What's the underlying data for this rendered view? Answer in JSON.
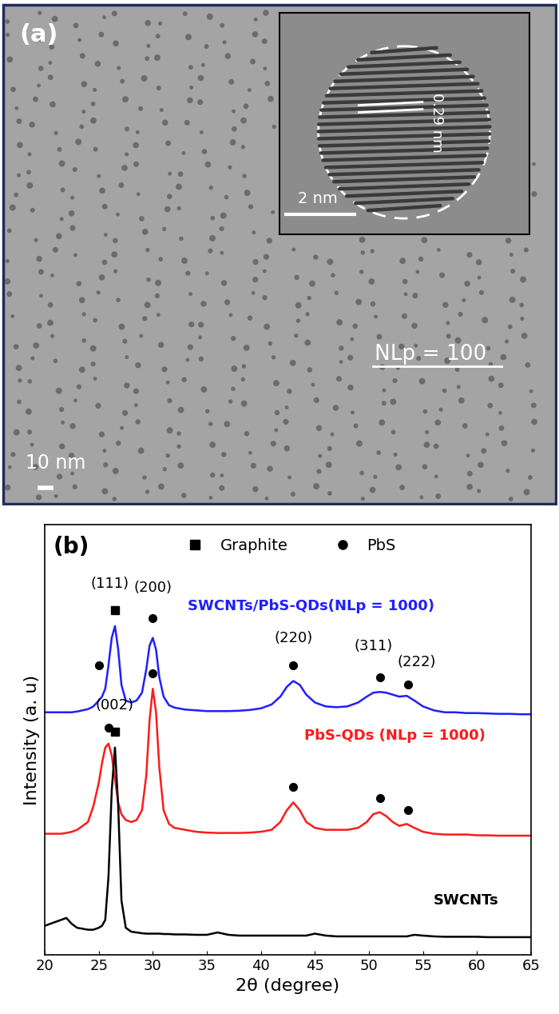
{
  "image": {
    "label": "(a)",
    "annotation": "NLp = 100",
    "scale_bar": "10 nm",
    "inset": {
      "lattice_spacing": "0.29 nm",
      "scale_bar": "2 nm"
    }
  },
  "chart_data": {
    "type": "line",
    "panel_label": "(b)",
    "xlabel": "2θ (degree)",
    "ylabel": "Intensity (a. u)",
    "xlim": [
      20,
      65
    ],
    "xticks": [
      20,
      25,
      30,
      35,
      40,
      45,
      50,
      55,
      60,
      65
    ],
    "ylim": [
      0,
      110
    ],
    "yticks": [],
    "tick_labels": "x",
    "grid": false,
    "legend": "upper center",
    "phases": [
      {
        "name": "Graphite",
        "marker": "square",
        "color": "#000000"
      },
      {
        "name": "PbS",
        "marker": "circle",
        "color": "#000000"
      }
    ],
    "x": [
      20,
      21,
      21.5,
      22,
      22.5,
      23,
      24,
      24.5,
      25,
      25.3,
      25.6,
      25.9,
      26.2,
      26.5,
      26.8,
      27.1,
      27.5,
      28,
      28.5,
      29,
      29.4,
      29.7,
      30,
      30.3,
      30.6,
      31,
      31.5,
      32,
      33,
      34,
      35,
      36,
      37,
      38,
      39,
      40,
      41,
      41.8,
      42.4,
      43,
      43.6,
      44.2,
      45,
      46,
      47,
      48,
      49,
      49.8,
      50.4,
      51,
      51.6,
      52.2,
      52.8,
      53.5,
      54.2,
      55,
      56,
      57,
      58,
      59,
      60,
      61,
      62,
      63,
      64,
      65
    ],
    "series": [
      {
        "name": "SWCNTs/PbS-QDs(NLp = 1000)",
        "color": "#1f1fff",
        "label_position": [
          33.2,
          89
        ],
        "values": [
          62,
          62,
          62,
          62,
          62,
          62.2,
          62.8,
          63.5,
          65,
          66,
          68,
          74,
          81,
          84,
          78,
          69,
          65,
          64.5,
          65,
          67,
          73,
          79,
          81,
          78,
          71,
          66,
          63.8,
          63.2,
          62.7,
          62.5,
          62.3,
          62.3,
          62.3,
          62.4,
          62.6,
          63,
          64,
          66,
          68.5,
          70,
          69,
          66.5,
          64.5,
          63.5,
          63.3,
          63.5,
          64.5,
          66,
          67,
          67.2,
          67,
          66.5,
          66,
          66.2,
          65,
          63.5,
          62.5,
          62,
          62,
          61.8,
          61.8,
          61.7,
          61.6,
          61.6,
          61.5,
          61.5
        ]
      },
      {
        "name": "PbS-QDs (NLp = 1000)",
        "color": "#ff1a1a",
        "label_position": [
          44.0,
          56
        ],
        "values": [
          31,
          31,
          31,
          31.2,
          31.5,
          32,
          34,
          38,
          44,
          49,
          53,
          54,
          51,
          45,
          39,
          36,
          34.5,
          34,
          34.5,
          37,
          46,
          60,
          68,
          62,
          48,
          37,
          33.5,
          32.5,
          32,
          31.5,
          31.3,
          31.2,
          31.2,
          31.2,
          31.3,
          31.5,
          32,
          34,
          37,
          39,
          37,
          34,
          32.5,
          32,
          32,
          32,
          32.5,
          34,
          36,
          36.5,
          35.5,
          34,
          33,
          33.5,
          32.5,
          31.5,
          31,
          30.8,
          30.8,
          30.8,
          30.6,
          30.6,
          30.5,
          30.5,
          30.5,
          30.5
        ]
      },
      {
        "name": "SWCNTs",
        "color": "#000000",
        "label_position": [
          56.0,
          14
        ],
        "values": [
          7.5,
          8.5,
          9,
          9.5,
          8,
          7,
          6.5,
          6.5,
          7,
          7.5,
          9,
          20,
          42,
          53,
          38,
          14,
          7,
          6,
          5.8,
          5.6,
          5.5,
          5.5,
          5.5,
          5.5,
          5.5,
          5.4,
          5.4,
          5.3,
          5.3,
          5.2,
          5.2,
          5.8,
          5.2,
          5,
          5,
          5,
          5,
          5,
          5,
          5,
          5,
          5,
          5.5,
          5,
          4.8,
          4.8,
          4.8,
          4.8,
          4.8,
          4.8,
          4.8,
          4.8,
          4.8,
          4.8,
          5.2,
          5,
          4.8,
          4.7,
          4.7,
          4.7,
          4.7,
          4.6,
          4.6,
          4.6,
          4.6,
          4.6
        ]
      }
    ],
    "peak_markers": [
      {
        "x": 25.0,
        "y": 74,
        "phase": "PbS"
      },
      {
        "x": 26.5,
        "y": 88,
        "phase": "Graphite"
      },
      {
        "x": 30.0,
        "y": 86,
        "phase": "PbS"
      },
      {
        "x": 43.0,
        "y": 74,
        "phase": "PbS"
      },
      {
        "x": 51.0,
        "y": 71,
        "phase": "PbS"
      },
      {
        "x": 53.6,
        "y": 69,
        "phase": "PbS"
      },
      {
        "x": 25.9,
        "y": 58,
        "phase": "PbS"
      },
      {
        "x": 30.0,
        "y": 72,
        "phase": "PbS"
      },
      {
        "x": 43.0,
        "y": 43,
        "phase": "PbS"
      },
      {
        "x": 51.0,
        "y": 40,
        "phase": "PbS"
      },
      {
        "x": 53.6,
        "y": 37,
        "phase": "PbS"
      },
      {
        "x": 26.5,
        "y": 57,
        "phase": "Graphite"
      }
    ],
    "annotations": [
      {
        "text": "(111)",
        "x": 26.0,
        "y": 93
      },
      {
        "text": "(200)",
        "x": 30.0,
        "y": 92
      },
      {
        "text": "(220)",
        "x": 43.0,
        "y": 79
      },
      {
        "text": "(311)",
        "x": 50.4,
        "y": 77
      },
      {
        "text": "(222)",
        "x": 54.4,
        "y": 73
      },
      {
        "text": "(002)",
        "x": 26.5,
        "y": 62
      }
    ]
  }
}
